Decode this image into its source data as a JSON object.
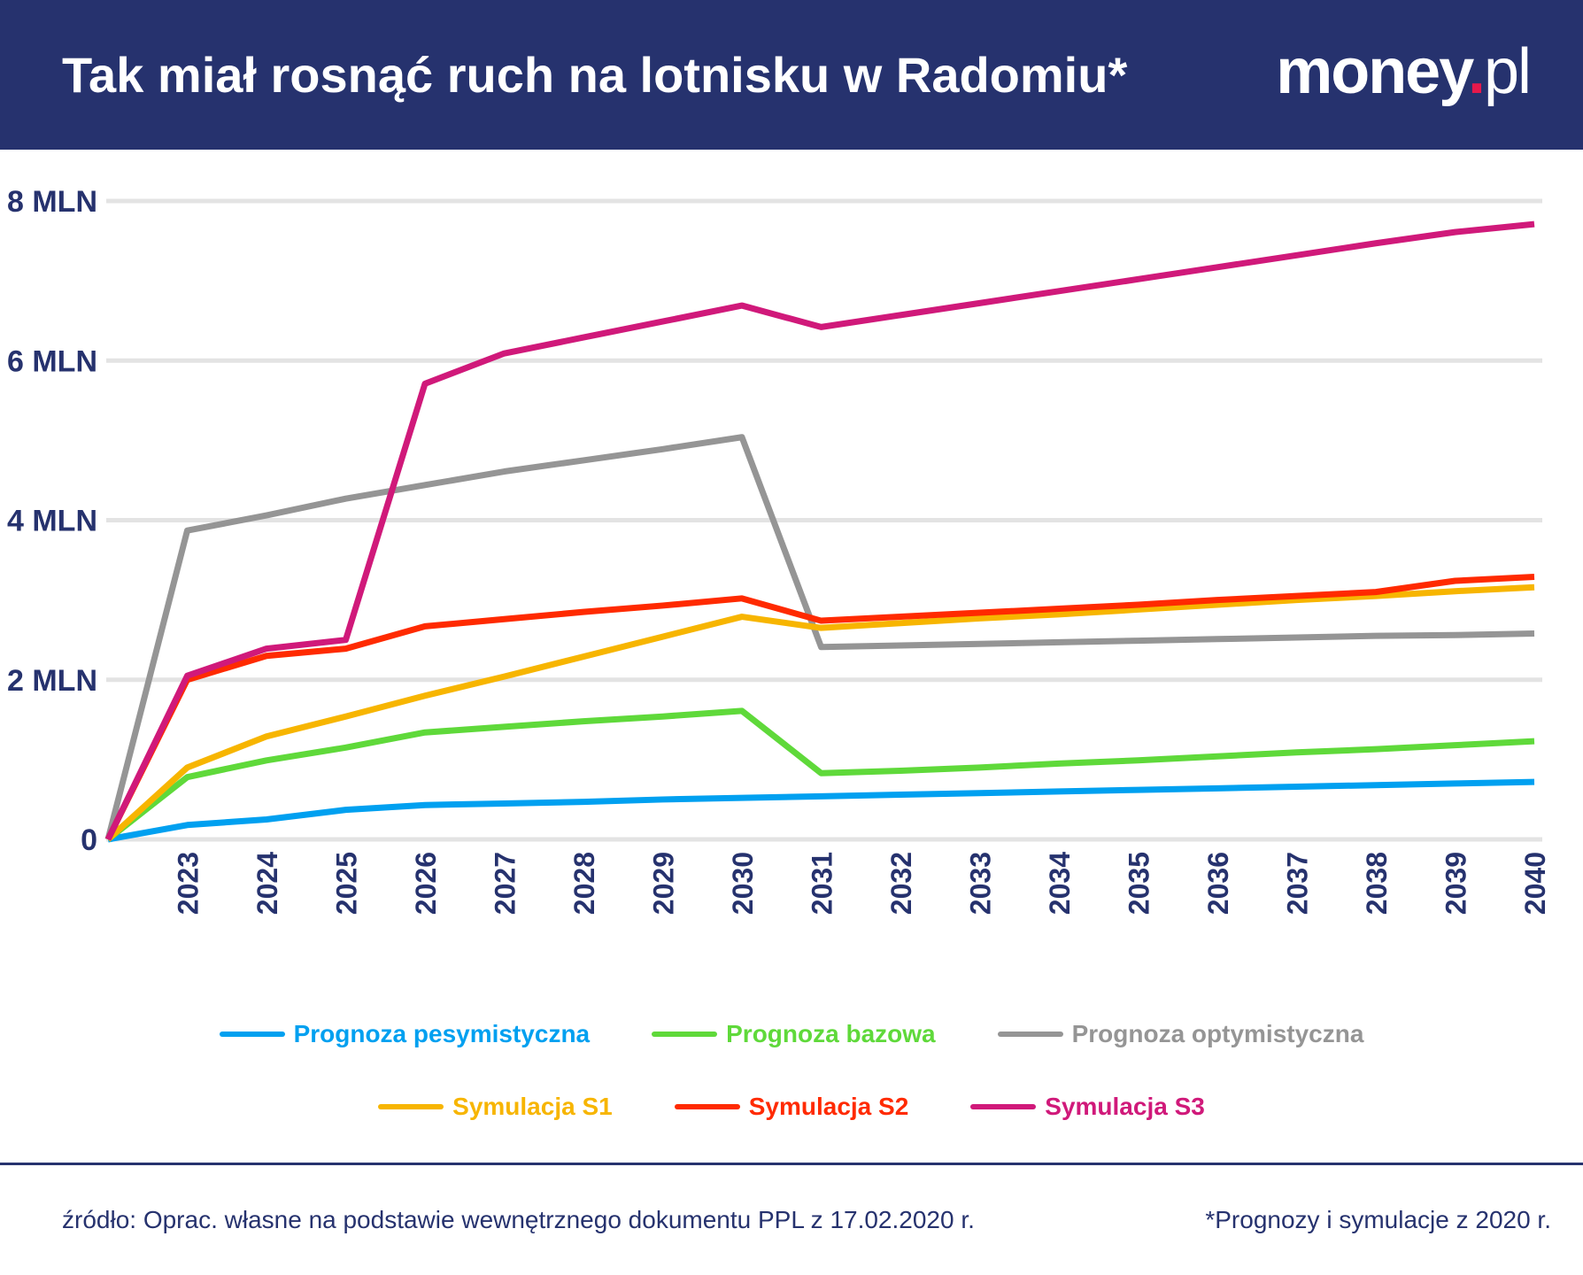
{
  "header": {
    "title": "Tak miał rosnąć ruch na lotnisku w Radomiu*",
    "logo": "money.pl"
  },
  "chart_data": {
    "type": "line",
    "categories": [
      "",
      "2023",
      "2024",
      "2025",
      "2026",
      "2027",
      "2028",
      "2029",
      "2030",
      "2031",
      "2032",
      "2033",
      "2034",
      "2035",
      "2036",
      "2037",
      "2038",
      "2039",
      "2040"
    ],
    "yticks": [
      "0",
      "2 MLN",
      "4 MLN",
      "6 MLN",
      "8 MLN"
    ],
    "ylim": [
      0,
      8
    ],
    "yunit": "million passengers",
    "grid": true,
    "legend": "bottom",
    "series": [
      {
        "name": "Prognoza pesymistyczna",
        "color": "#00a0f0",
        "values": [
          0,
          0.18,
          0.25,
          0.37,
          0.43,
          0.45,
          0.47,
          0.5,
          0.52,
          0.54,
          0.56,
          0.58,
          0.6,
          0.62,
          0.64,
          0.66,
          0.68,
          0.7,
          0.72
        ]
      },
      {
        "name": "Prognoza bazowa",
        "color": "#5fd93a",
        "values": [
          0,
          0.78,
          0.99,
          1.15,
          1.34,
          1.41,
          1.48,
          1.54,
          1.61,
          0.83,
          0.86,
          0.9,
          0.95,
          0.99,
          1.04,
          1.09,
          1.13,
          1.18,
          1.23
        ]
      },
      {
        "name": "Prognoza optymistyczna",
        "color": "#959595",
        "values": [
          0,
          3.87,
          4.06,
          4.27,
          4.44,
          4.61,
          4.75,
          4.89,
          5.04,
          2.41,
          2.43,
          2.45,
          2.47,
          2.49,
          2.51,
          2.53,
          2.55,
          2.56,
          2.58
        ]
      },
      {
        "name": "Symulacja S1",
        "color": "#f7b500",
        "values": [
          0,
          0.9,
          1.29,
          1.54,
          1.8,
          2.04,
          2.29,
          2.54,
          2.79,
          2.65,
          2.71,
          2.77,
          2.82,
          2.88,
          2.94,
          3.0,
          3.05,
          3.11,
          3.16
        ]
      },
      {
        "name": "Symulacja S2",
        "color": "#ff2a00",
        "values": [
          0,
          2.0,
          2.3,
          2.39,
          2.67,
          2.76,
          2.85,
          2.93,
          3.02,
          2.74,
          2.79,
          2.84,
          2.89,
          2.94,
          3.0,
          3.05,
          3.1,
          3.24,
          3.29
        ]
      },
      {
        "name": "Symulacja S3",
        "color": "#d0197a",
        "values": [
          0,
          2.05,
          2.39,
          2.5,
          5.71,
          6.09,
          6.29,
          6.49,
          6.69,
          6.42,
          6.57,
          6.72,
          6.87,
          7.02,
          7.17,
          7.32,
          7.47,
          7.61,
          7.71
        ]
      }
    ]
  },
  "footer": {
    "source": "źródło: Oprac. własne na podstawie wewnętrznego dokumentu PPL z 17.02.2020 r.",
    "note": "*Prognozy i symulacje z 2020 r."
  }
}
